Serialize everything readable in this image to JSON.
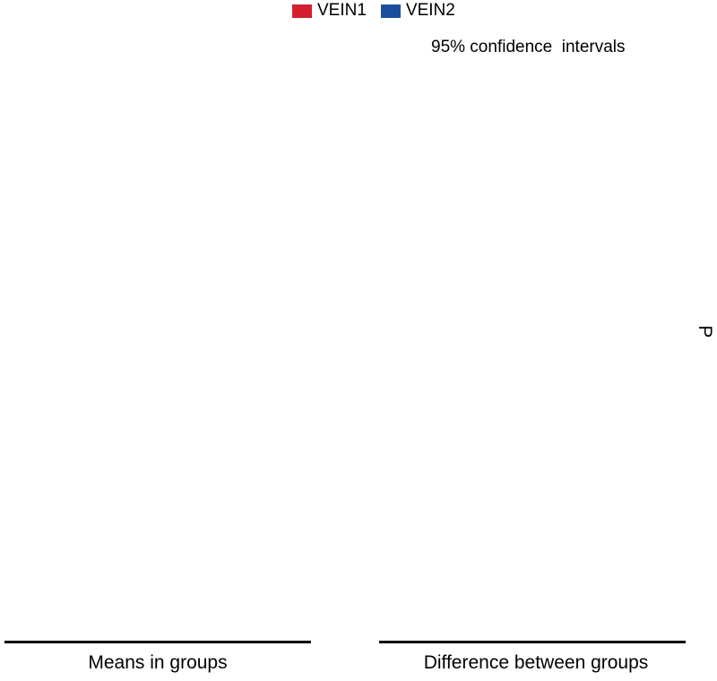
{
  "chart_data": {
    "type": "scatter",
    "legend": {
      "placement": "top-center",
      "entries": [
        {
          "name": "VEIN1",
          "color": "#d41f30"
        },
        {
          "name": "VEIN2",
          "color": "#1c4ea0"
        }
      ]
    },
    "series": [
      {
        "name": "VEIN1",
        "values": []
      },
      {
        "name": "VEIN2",
        "values": []
      }
    ],
    "annotation": "95% confidence  intervals",
    "panels": [
      {
        "label": "Means in groups"
      },
      {
        "label": "Difference between groups"
      }
    ],
    "right_axis_label": "P",
    "grid": false
  }
}
